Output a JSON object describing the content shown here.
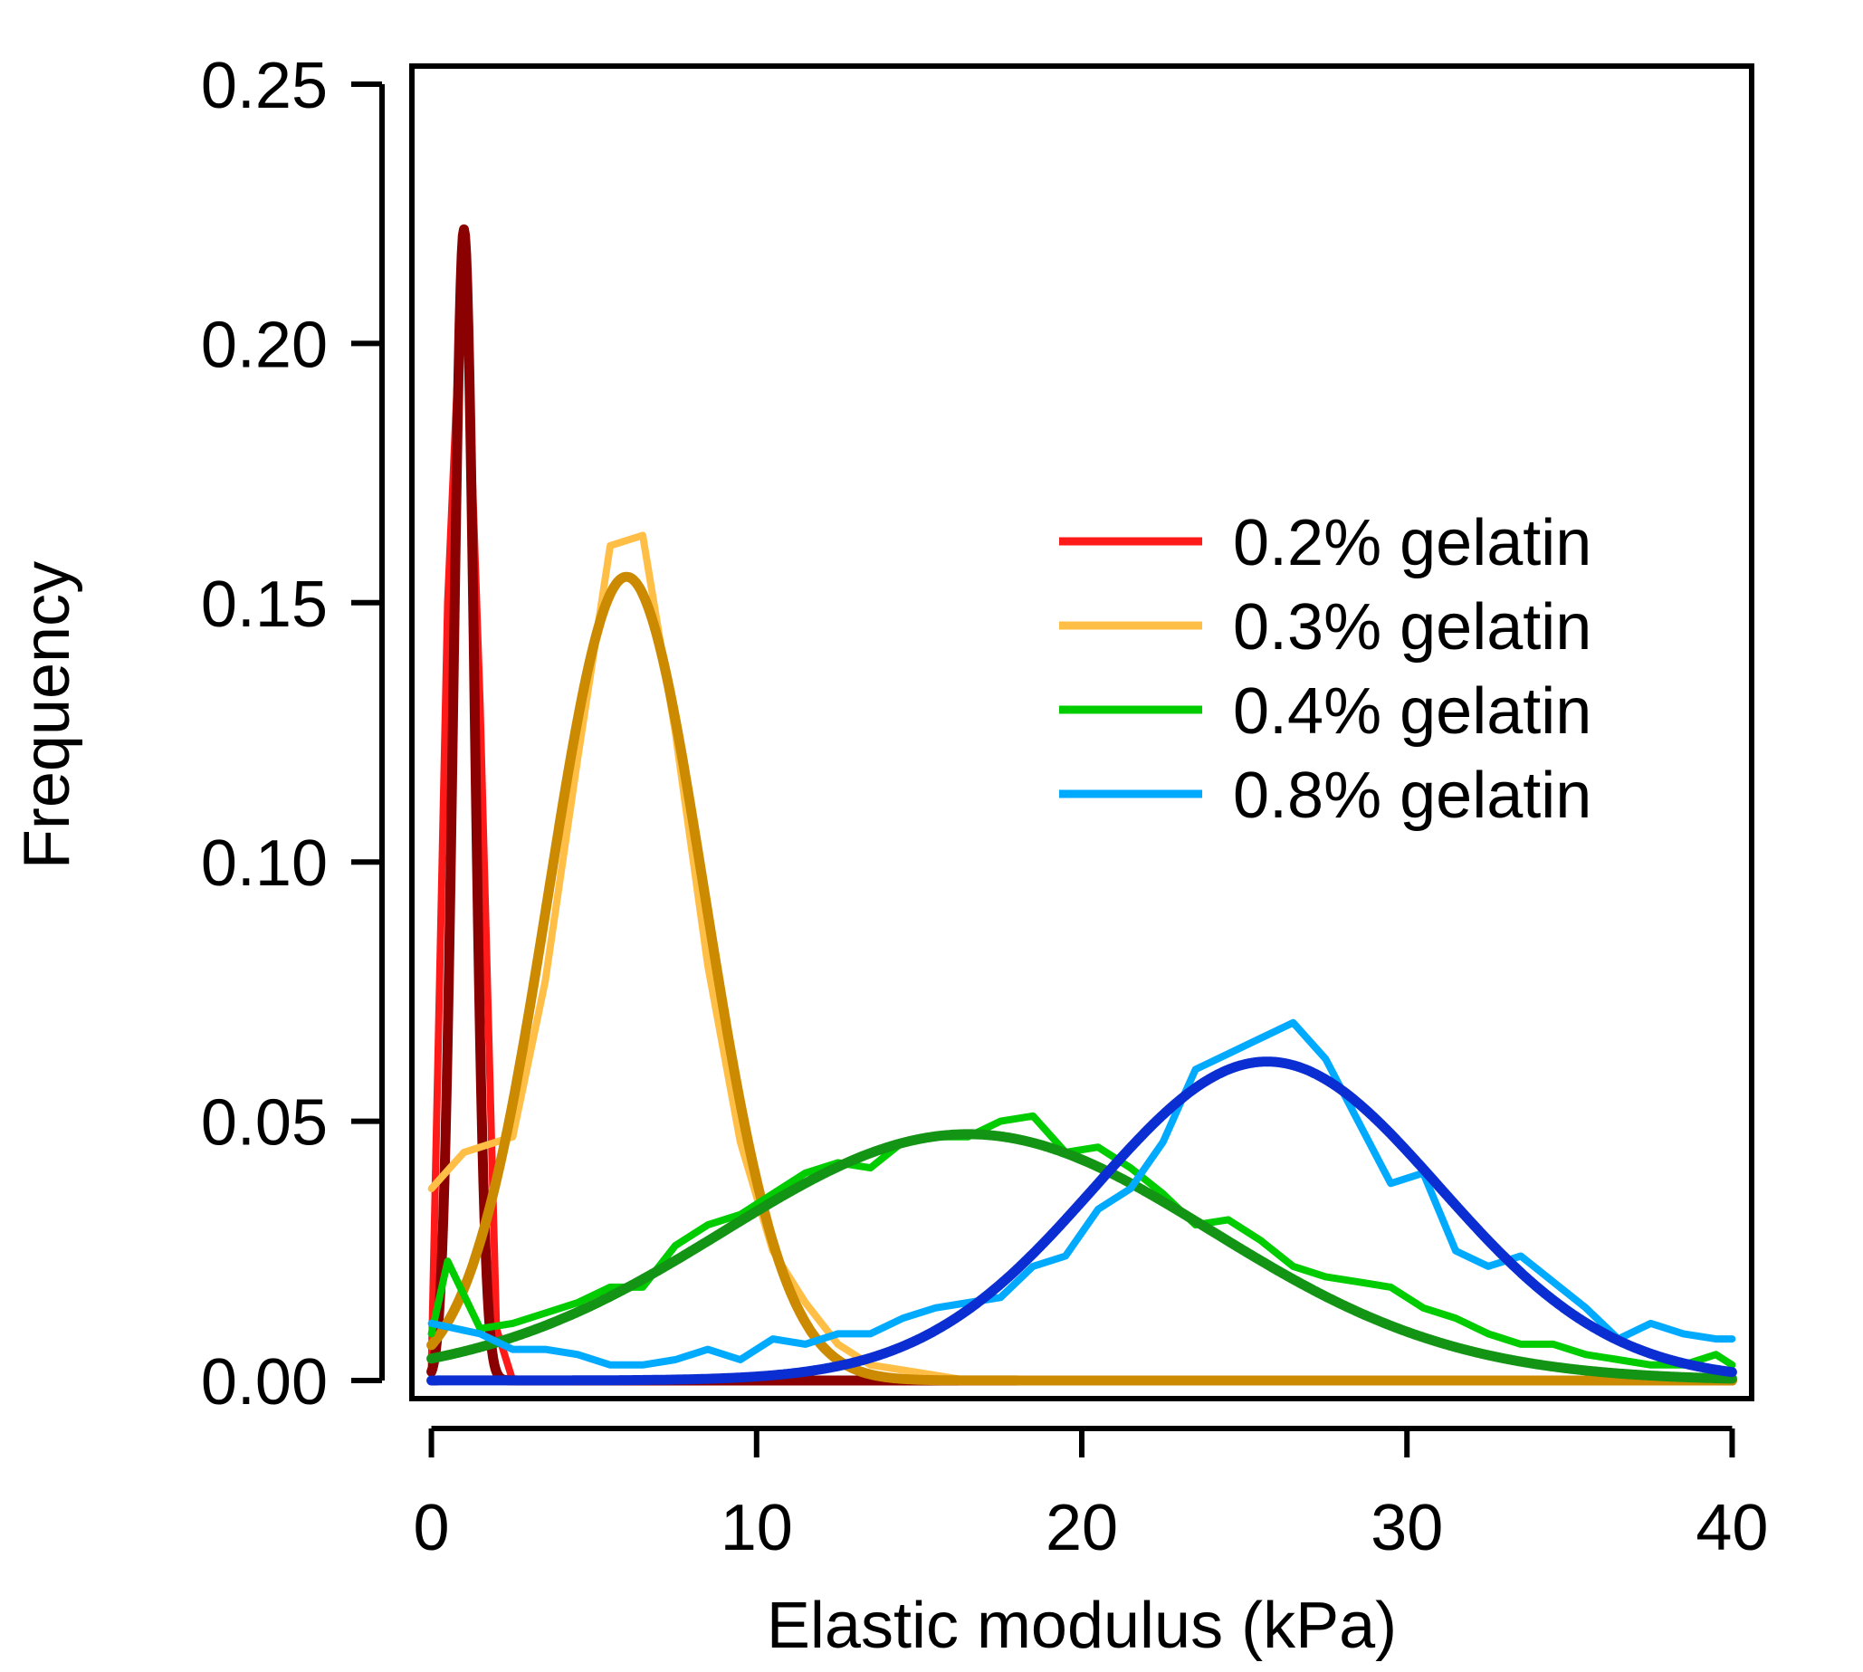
{
  "chart_data": {
    "type": "line",
    "xlabel": "Elastic modulus (kPa)",
    "ylabel": "Frequency",
    "xlim": [
      -0.6,
      40.6
    ],
    "ylim": [
      -0.0035,
      0.2535
    ],
    "x_ticks": [
      0,
      10,
      20,
      30,
      40
    ],
    "x_tick_labels": [
      "0",
      "10",
      "20",
      "30",
      "40"
    ],
    "y_ticks": [
      0,
      0.05,
      0.1,
      0.15,
      0.2,
      0.25
    ],
    "y_tick_labels": [
      "0.00",
      "0.05",
      "0.10",
      "0.15",
      "0.20",
      "0.25"
    ],
    "grid": false,
    "legend_position": "right",
    "legend": [
      {
        "label": "0.2% gelatin",
        "color": "#ff1a1a"
      },
      {
        "label": "0.3% gelatin",
        "color": "#ffbf47"
      },
      {
        "label": "0.4% gelatin",
        "color": "#00cc00"
      },
      {
        "label": "0.8% gelatin",
        "color": "#00aaff"
      }
    ],
    "series": [
      {
        "name": "0.2% gelatin",
        "kind": "histogram",
        "color": "#ff1a1a",
        "x": [
          0.0,
          0.5,
          1.0,
          1.5,
          2.0,
          2.5,
          3.0
        ],
        "y": [
          0.003,
          0.15,
          0.222,
          0.13,
          0.01,
          0.0,
          0.0
        ]
      },
      {
        "kind": "fit",
        "color": "#8b0000",
        "model": {
          "amplitude": 0.222,
          "center": 1.0,
          "sigma": 0.32,
          "x_start": 0.0,
          "x_end": 40.0
        }
      },
      {
        "name": "0.3% gelatin",
        "kind": "histogram",
        "color": "#ffbf47",
        "x": [
          0.0,
          1.0,
          2.5,
          3.5,
          4.5,
          5.5,
          6.5,
          7.5,
          8.5,
          9.5,
          10.5,
          11.5,
          12.5,
          13.5,
          14.5,
          15.5,
          16.5,
          40.0
        ],
        "y": [
          0.037,
          0.044,
          0.047,
          0.077,
          0.12,
          0.161,
          0.163,
          0.125,
          0.08,
          0.046,
          0.025,
          0.015,
          0.007,
          0.003,
          0.002,
          0.001,
          0.0,
          0.0
        ]
      },
      {
        "kind": "fit",
        "color": "#cc8a00",
        "model": {
          "amplitude": 0.155,
          "center": 6.0,
          "sigma": 2.4,
          "x_start": 0.0,
          "x_end": 40.0
        }
      },
      {
        "name": "0.4% gelatin",
        "kind": "histogram",
        "color": "#00cc00",
        "x": [
          0.0,
          0.5,
          1.5,
          2.5,
          3.5,
          4.5,
          5.5,
          6.5,
          7.5,
          8.5,
          9.5,
          10.5,
          11.5,
          12.5,
          13.5,
          14.5,
          15.5,
          16.5,
          17.5,
          18.5,
          19.5,
          20.5,
          21.5,
          22.5,
          23.5,
          24.5,
          25.5,
          26.5,
          27.5,
          28.5,
          29.5,
          30.5,
          31.5,
          32.5,
          33.5,
          34.5,
          35.5,
          36.5,
          37.5,
          38.5,
          39.5,
          40.0
        ],
        "y": [
          0.009,
          0.023,
          0.01,
          0.011,
          0.013,
          0.015,
          0.018,
          0.018,
          0.026,
          0.03,
          0.032,
          0.036,
          0.04,
          0.042,
          0.041,
          0.046,
          0.047,
          0.047,
          0.05,
          0.051,
          0.044,
          0.045,
          0.041,
          0.036,
          0.03,
          0.031,
          0.027,
          0.022,
          0.02,
          0.019,
          0.018,
          0.014,
          0.012,
          0.009,
          0.007,
          0.007,
          0.005,
          0.004,
          0.003,
          0.003,
          0.005,
          0.003
        ]
      },
      {
        "kind": "fit",
        "color": "#149414",
        "model": {
          "amplitude": 0.0475,
          "center": 16.5,
          "sigma": 7.5,
          "x_start": 0.0,
          "x_end": 40.0
        }
      },
      {
        "name": "0.8% gelatin",
        "kind": "histogram",
        "color": "#00aaff",
        "x": [
          0.0,
          1.5,
          2.5,
          3.5,
          4.5,
          5.5,
          6.5,
          7.5,
          8.5,
          9.5,
          10.5,
          11.5,
          12.5,
          13.5,
          14.5,
          15.5,
          16.5,
          17.5,
          18.5,
          19.5,
          20.5,
          21.5,
          22.5,
          23.5,
          24.5,
          25.5,
          26.5,
          27.5,
          28.5,
          29.5,
          30.5,
          31.5,
          32.5,
          33.5,
          34.5,
          35.5,
          36.5,
          37.5,
          38.5,
          39.5,
          40.0
        ],
        "y": [
          0.011,
          0.009,
          0.006,
          0.006,
          0.005,
          0.003,
          0.003,
          0.004,
          0.006,
          0.004,
          0.008,
          0.007,
          0.009,
          0.009,
          0.012,
          0.014,
          0.015,
          0.016,
          0.022,
          0.024,
          0.033,
          0.037,
          0.046,
          0.06,
          0.063,
          0.066,
          0.069,
          0.062,
          0.05,
          0.038,
          0.04,
          0.025,
          0.022,
          0.024,
          0.019,
          0.014,
          0.008,
          0.011,
          0.009,
          0.008,
          0.008
        ]
      },
      {
        "kind": "fit",
        "color": "#0a2ed1",
        "model": {
          "amplitude": 0.0615,
          "center": 25.7,
          "sigma": 5.3,
          "x_start": 0.0,
          "x_end": 40.0
        }
      }
    ]
  }
}
